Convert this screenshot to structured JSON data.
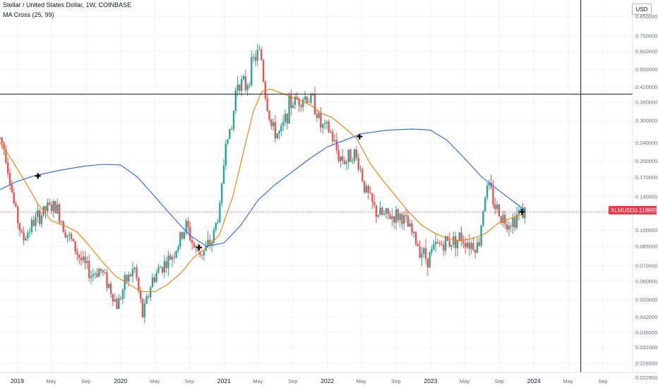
{
  "header": {
    "symbol_title": "Stellar / United States Dollar, 1W, COINBASE",
    "indicator_label": "MA Cross (25, 99)",
    "currency": "USD"
  },
  "last_price": {
    "ticker": "XLMUSD",
    "value": "0.119899",
    "price": 0.119899
  },
  "colors": {
    "up": "#26a69a",
    "down": "#ef5350",
    "ma_fast": "#f57c00",
    "ma_slow": "#2962ff",
    "crosshair": "#131722",
    "last_price_line": "#f23645"
  },
  "chart_data": {
    "type": "candlestick",
    "scale": "log",
    "ylim": [
      0.0229,
      0.85
    ],
    "xlim": [
      "2018-11-01",
      "2024-12-15"
    ],
    "y_ticks": [
      {
        "label": "0.850000",
        "value": 0.85
      },
      {
        "label": "0.700000",
        "value": 0.7
      },
      {
        "label": "0.600000",
        "value": 0.6
      },
      {
        "label": "0.500000",
        "value": 0.5
      },
      {
        "label": "0.420000",
        "value": 0.42
      },
      {
        "label": "0.360000",
        "value": 0.36
      },
      {
        "label": "0.300000",
        "value": 0.3
      },
      {
        "label": "0.240000",
        "value": 0.24
      },
      {
        "label": "0.200000",
        "value": 0.2
      },
      {
        "label": "0.170000",
        "value": 0.17
      },
      {
        "label": "0.140000",
        "value": 0.14
      },
      {
        "label": "0.100000",
        "value": 0.1
      },
      {
        "label": "0.085000",
        "value": 0.085
      },
      {
        "label": "0.070000",
        "value": 0.07
      },
      {
        "label": "0.060000",
        "value": 0.06
      },
      {
        "label": "0.050000",
        "value": 0.05
      },
      {
        "label": "0.042000",
        "value": 0.042
      },
      {
        "label": "0.036000",
        "value": 0.036
      },
      {
        "label": "0.031000",
        "value": 0.031
      },
      {
        "label": "0.026500",
        "value": 0.0265
      },
      {
        "label": "0.022900",
        "value": 0.0229
      }
    ],
    "x_ticks": [
      {
        "label": "2019",
        "date": "2019-01-01"
      },
      {
        "label": "May",
        "date": "2019-05-01"
      },
      {
        "label": "Sep",
        "date": "2019-09-01"
      },
      {
        "label": "2020",
        "date": "2020-01-01"
      },
      {
        "label": "May",
        "date": "2020-05-01"
      },
      {
        "label": "Sep",
        "date": "2020-09-01"
      },
      {
        "label": "2021",
        "date": "2021-01-01"
      },
      {
        "label": "May",
        "date": "2021-05-01"
      },
      {
        "label": "Sep",
        "date": "2021-09-01"
      },
      {
        "label": "2022",
        "date": "2022-01-01"
      },
      {
        "label": "May",
        "date": "2022-05-01"
      },
      {
        "label": "Sep",
        "date": "2022-09-01"
      },
      {
        "label": "2023",
        "date": "2023-01-01"
      },
      {
        "label": "May",
        "date": "2023-05-01"
      },
      {
        "label": "Sep",
        "date": "2023-09-01"
      },
      {
        "label": "2024",
        "date": "2024-01-01"
      },
      {
        "label": "May",
        "date": "2024-05-01"
      },
      {
        "label": "Sep",
        "date": "2024-09-01"
      }
    ],
    "price_path": [
      [
        "2018-11-01",
        0.25
      ],
      [
        "2018-11-20",
        0.22
      ],
      [
        "2018-12-20",
        0.13
      ],
      [
        "2019-01-20",
        0.09
      ],
      [
        "2019-02-20",
        0.105
      ],
      [
        "2019-03-20",
        0.115
      ],
      [
        "2019-04-20",
        0.125
      ],
      [
        "2019-05-20",
        0.125
      ],
      [
        "2019-06-20",
        0.1
      ],
      [
        "2019-07-20",
        0.085
      ],
      [
        "2019-08-20",
        0.072
      ],
      [
        "2019-09-20",
        0.064
      ],
      [
        "2019-10-20",
        0.068
      ],
      [
        "2019-11-20",
        0.058
      ],
      [
        "2019-12-20",
        0.047
      ],
      [
        "2020-01-20",
        0.06
      ],
      [
        "2020-02-20",
        0.068
      ],
      [
        "2020-03-20",
        0.042
      ],
      [
        "2020-04-20",
        0.06
      ],
      [
        "2020-05-20",
        0.069
      ],
      [
        "2020-06-20",
        0.074
      ],
      [
        "2020-07-20",
        0.085
      ],
      [
        "2020-08-20",
        0.105
      ],
      [
        "2020-09-20",
        0.082
      ],
      [
        "2020-10-20",
        0.08
      ],
      [
        "2020-11-20",
        0.09
      ],
      [
        "2020-12-20",
        0.13
      ],
      [
        "2021-01-10",
        0.28
      ],
      [
        "2021-01-25",
        0.25
      ],
      [
        "2021-02-15",
        0.45
      ],
      [
        "2021-03-20",
        0.42
      ],
      [
        "2021-04-15",
        0.55
      ],
      [
        "2021-05-10",
        0.6
      ],
      [
        "2021-05-25",
        0.4
      ],
      [
        "2021-06-20",
        0.27
      ],
      [
        "2021-07-20",
        0.26
      ],
      [
        "2021-08-20",
        0.35
      ],
      [
        "2021-09-15",
        0.37
      ],
      [
        "2021-10-15",
        0.38
      ],
      [
        "2021-11-15",
        0.36
      ],
      [
        "2021-12-10",
        0.28
      ],
      [
        "2022-01-10",
        0.27
      ],
      [
        "2022-02-10",
        0.21
      ],
      [
        "2022-03-10",
        0.2
      ],
      [
        "2022-04-01",
        0.22
      ],
      [
        "2022-04-25",
        0.19
      ],
      [
        "2022-05-15",
        0.15
      ],
      [
        "2022-06-20",
        0.12
      ],
      [
        "2022-07-20",
        0.115
      ],
      [
        "2022-08-20",
        0.115
      ],
      [
        "2022-09-20",
        0.115
      ],
      [
        "2022-10-20",
        0.1
      ],
      [
        "2022-11-20",
        0.085
      ],
      [
        "2022-12-20",
        0.075
      ],
      [
        "2023-01-20",
        0.085
      ],
      [
        "2023-02-20",
        0.088
      ],
      [
        "2023-03-20",
        0.09
      ],
      [
        "2023-04-20",
        0.093
      ],
      [
        "2023-05-20",
        0.088
      ],
      [
        "2023-06-20",
        0.085
      ],
      [
        "2023-07-10",
        0.14
      ],
      [
        "2023-07-25",
        0.155
      ],
      [
        "2023-08-20",
        0.125
      ],
      [
        "2023-09-20",
        0.11
      ],
      [
        "2023-10-20",
        0.11
      ],
      [
        "2023-11-10",
        0.12
      ],
      [
        "2023-11-30",
        0.12
      ]
    ],
    "series": [
      {
        "name": "MA 25",
        "color": "#f57c00",
        "points": [
          [
            "2018-11-01",
            0.24
          ],
          [
            "2018-12-15",
            0.2
          ],
          [
            "2019-02-01",
            0.16
          ],
          [
            "2019-03-15",
            0.13
          ],
          [
            "2019-05-01",
            0.11
          ],
          [
            "2019-06-15",
            0.105
          ],
          [
            "2019-08-01",
            0.098
          ],
          [
            "2019-09-15",
            0.085
          ],
          [
            "2019-11-01",
            0.072
          ],
          [
            "2019-12-15",
            0.063
          ],
          [
            "2020-02-01",
            0.058
          ],
          [
            "2020-03-15",
            0.054
          ],
          [
            "2020-05-01",
            0.054
          ],
          [
            "2020-06-15",
            0.058
          ],
          [
            "2020-08-01",
            0.065
          ],
          [
            "2020-09-15",
            0.076
          ],
          [
            "2020-11-01",
            0.084
          ],
          [
            "2020-12-15",
            0.095
          ],
          [
            "2021-02-01",
            0.14
          ],
          [
            "2021-03-15",
            0.23
          ],
          [
            "2021-04-15",
            0.33
          ],
          [
            "2021-05-15",
            0.4
          ],
          [
            "2021-06-15",
            0.41
          ],
          [
            "2021-08-01",
            0.39
          ],
          [
            "2021-09-15",
            0.37
          ],
          [
            "2021-11-01",
            0.35
          ],
          [
            "2021-12-15",
            0.32
          ],
          [
            "2022-01-15",
            0.31
          ],
          [
            "2022-03-01",
            0.28
          ],
          [
            "2022-04-15",
            0.25
          ],
          [
            "2022-06-01",
            0.195
          ],
          [
            "2022-07-15",
            0.165
          ],
          [
            "2022-09-01",
            0.14
          ],
          [
            "2022-10-15",
            0.12
          ],
          [
            "2022-12-01",
            0.105
          ],
          [
            "2023-01-15",
            0.097
          ],
          [
            "2023-03-01",
            0.092
          ],
          [
            "2023-04-15",
            0.09
          ],
          [
            "2023-06-01",
            0.092
          ],
          [
            "2023-07-15",
            0.097
          ],
          [
            "2023-09-01",
            0.108
          ],
          [
            "2023-10-15",
            0.113
          ],
          [
            "2023-12-01",
            0.118
          ]
        ]
      },
      {
        "name": "MA 99",
        "color": "#2962ff",
        "points": [
          [
            "2018-11-01",
            0.15
          ],
          [
            "2019-01-01",
            0.163
          ],
          [
            "2019-03-01",
            0.172
          ],
          [
            "2019-06-01",
            0.182
          ],
          [
            "2019-09-01",
            0.19
          ],
          [
            "2019-11-01",
            0.193
          ],
          [
            "2020-01-01",
            0.192
          ],
          [
            "2020-03-01",
            0.17
          ],
          [
            "2020-05-01",
            0.14
          ],
          [
            "2020-07-01",
            0.115
          ],
          [
            "2020-09-01",
            0.095
          ],
          [
            "2020-11-01",
            0.085
          ],
          [
            "2021-01-01",
            0.088
          ],
          [
            "2021-03-01",
            0.105
          ],
          [
            "2021-05-01",
            0.135
          ],
          [
            "2021-07-01",
            0.158
          ],
          [
            "2021-09-01",
            0.18
          ],
          [
            "2021-11-01",
            0.205
          ],
          [
            "2022-01-01",
            0.23
          ],
          [
            "2022-03-01",
            0.245
          ],
          [
            "2022-05-01",
            0.262
          ],
          [
            "2022-08-01",
            0.272
          ],
          [
            "2022-11-01",
            0.275
          ],
          [
            "2023-01-01",
            0.272
          ],
          [
            "2023-03-01",
            0.245
          ],
          [
            "2023-05-01",
            0.205
          ],
          [
            "2023-07-01",
            0.17
          ],
          [
            "2023-09-01",
            0.148
          ],
          [
            "2023-11-01",
            0.13
          ],
          [
            "2023-12-01",
            0.122
          ]
        ]
      }
    ],
    "cross_markers": [
      {
        "date": "2019-03-15",
        "value": 0.172
      },
      {
        "date": "2020-10-05",
        "value": 0.084
      },
      {
        "date": "2022-04-25",
        "value": 0.255
      },
      {
        "date": "2023-11-20",
        "value": 0.12
      }
    ],
    "crosshair": {
      "date": "2024-06-15",
      "value": 0.39
    },
    "last_price_value": 0.119899
  }
}
